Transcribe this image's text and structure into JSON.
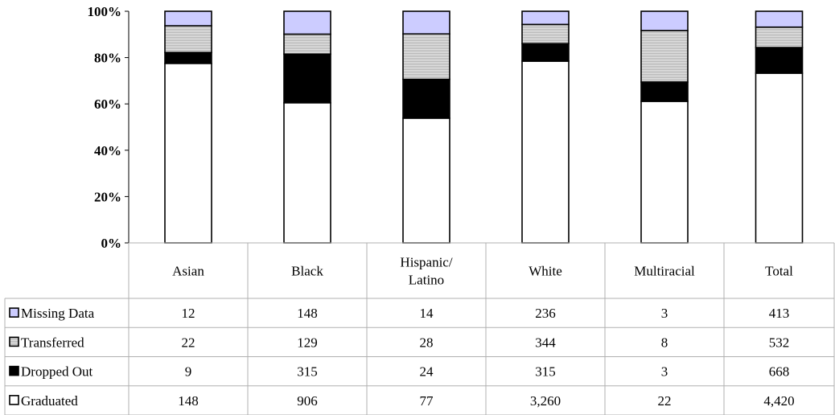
{
  "chart_data": {
    "type": "bar",
    "stacked": "percent",
    "categories": [
      "Asian",
      "Black",
      "Hispanic/\nLatino",
      "White",
      "Multiracial",
      "Total"
    ],
    "series": [
      {
        "name": "Graduated",
        "values": [
          148,
          906,
          77,
          3260,
          22,
          4420
        ],
        "display": [
          "148",
          "906",
          "77",
          "3,260",
          "22",
          "4,420"
        ],
        "color": "#ffffff"
      },
      {
        "name": "Dropped Out",
        "values": [
          9,
          315,
          24,
          315,
          3,
          668
        ],
        "display": [
          "9",
          "315",
          "24",
          "315",
          "3",
          "668"
        ],
        "color": "#000000"
      },
      {
        "name": "Transferred",
        "values": [
          22,
          129,
          28,
          344,
          8,
          532
        ],
        "display": [
          "22",
          "129",
          "28",
          "344",
          "8",
          "532"
        ],
        "color": "#c8c8c8"
      },
      {
        "name": "Missing Data",
        "values": [
          12,
          148,
          14,
          236,
          3,
          413
        ],
        "display": [
          "12",
          "148",
          "14",
          "236",
          "3",
          "413"
        ],
        "color": "#ccccff"
      }
    ],
    "table_row_order": [
      "Missing Data",
      "Transferred",
      "Dropped Out",
      "Graduated"
    ],
    "yticks": [
      "0%",
      "20%",
      "40%",
      "60%",
      "80%",
      "100%"
    ],
    "ylim": [
      0,
      100
    ],
    "grid": false,
    "legend": "data-table"
  }
}
